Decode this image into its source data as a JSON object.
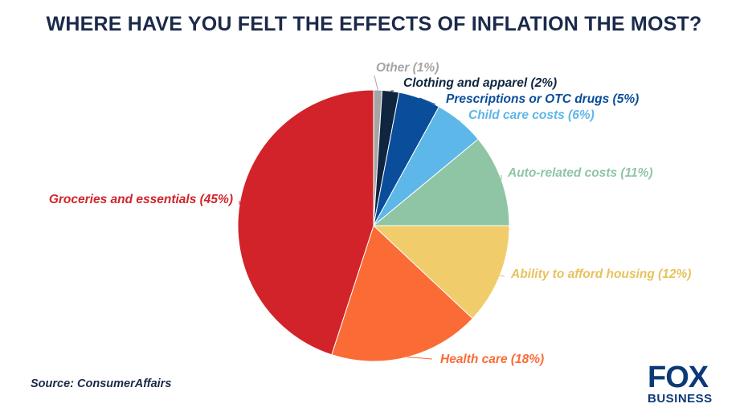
{
  "title": "WHERE HAVE YOU FELT THE EFFECTS OF INFLATION THE MOST?",
  "source": "Source: ConsumerAffairs",
  "logo": {
    "line1": "FOX",
    "line2": "BUSINESS",
    "color": "#0c3a78"
  },
  "chart_data": {
    "type": "pie",
    "title": "WHERE HAVE YOU FELT THE EFFECTS OF INFLATION THE MOST?",
    "unit": "%",
    "start": "12 o'clock, clockwise",
    "slices": [
      {
        "label": "Other (1%)",
        "value": 1,
        "color": "#a5a5a5"
      },
      {
        "label": "Clothing and apparel (2%)",
        "value": 2,
        "color": "#0f2540"
      },
      {
        "label": "Prescriptions or OTC drugs (5%)",
        "value": 5,
        "color": "#0a4d9a"
      },
      {
        "label": "Child care costs (6%)",
        "value": 6,
        "color": "#5db7e8"
      },
      {
        "label": "Auto-related costs (11%)",
        "value": 11,
        "color": "#8fc5a5"
      },
      {
        "label": "Ability to afford housing (12%)",
        "value": 12,
        "color": "#f0cc6b"
      },
      {
        "label": "Health care (18%)",
        "value": 18,
        "color": "#fa6b36"
      },
      {
        "label": "Groceries and essentials (45%)",
        "value": 45,
        "color": "#d2232a"
      }
    ],
    "legend": "none (labels beside slices)"
  }
}
